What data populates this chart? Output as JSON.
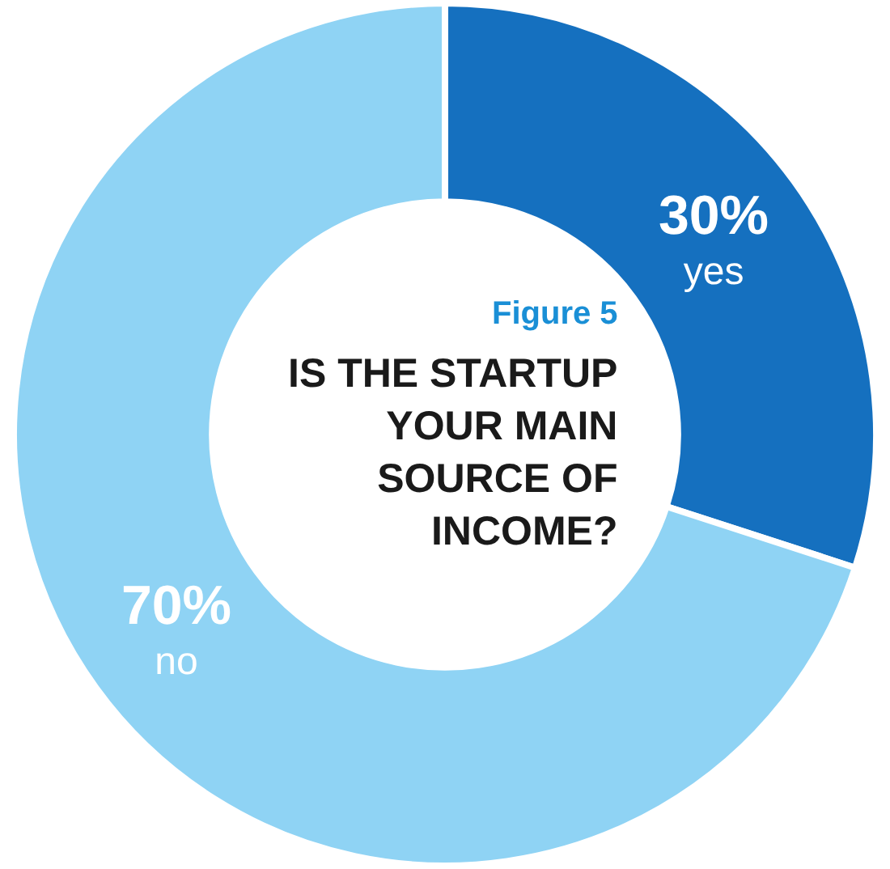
{
  "chart_data": {
    "type": "donut",
    "subtitle": "Figure 5",
    "title": "IS THE STARTUP\nYOUR MAIN\nSOURCE OF\nINCOME?",
    "categories": [
      "yes",
      "no"
    ],
    "values": [
      30,
      70
    ],
    "value_labels": [
      "30%",
      "70%"
    ],
    "colors": [
      "#1570bf",
      "#8fd3f4"
    ],
    "legend": false
  }
}
